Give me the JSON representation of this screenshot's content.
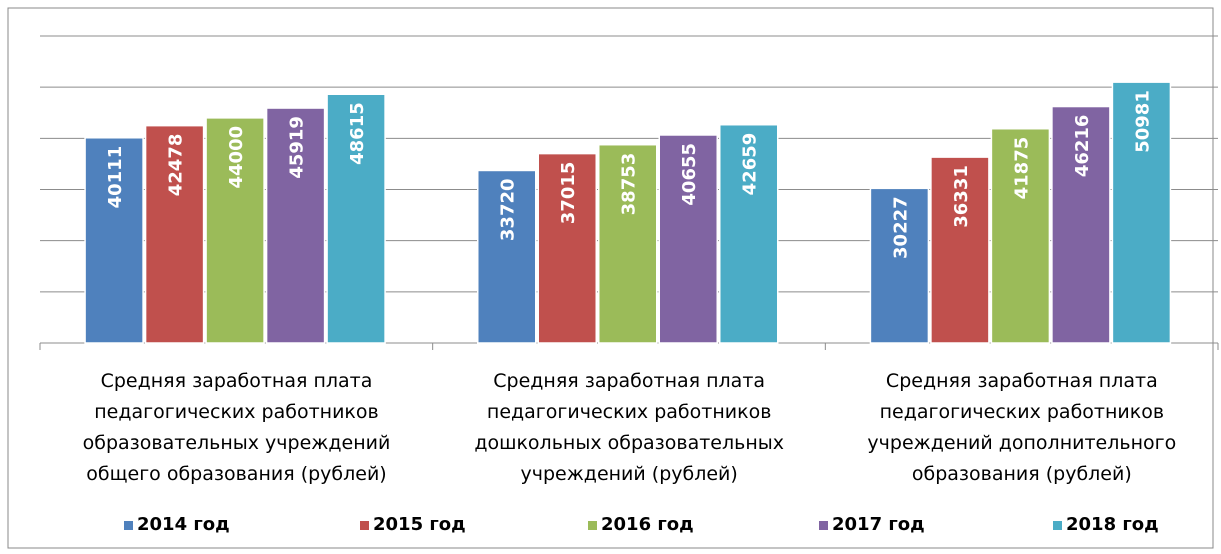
{
  "chart_data": {
    "type": "bar",
    "categories": [
      "Средняя заработная плата\nпедагогических работников\nобразовательных учреждений\nобщего образования  (рублей)",
      "Средняя заработная плата\nпедагогических работников\nдошкольных образовательных\nучреждений (рублей)",
      "Средняя заработная плата\nпедагогических работников\nучреждений дополнительного\nобразования  (рублей)"
    ],
    "series": [
      {
        "name": "2014 год",
        "color": "#4f81bd",
        "values": [
          40111,
          33720,
          30227
        ]
      },
      {
        "name": "2015 год",
        "color": "#c0504d",
        "values": [
          42478,
          37015,
          36331
        ]
      },
      {
        "name": "2016 год",
        "color": "#9bbb59",
        "values": [
          44000,
          38753,
          41875
        ]
      },
      {
        "name": "2017 год",
        "color": "#8064a2",
        "values": [
          45919,
          40655,
          46216
        ]
      },
      {
        "name": "2018 год",
        "color": "#4bacc6",
        "values": [
          48615,
          42659,
          50981
        ]
      }
    ],
    "ylim": [
      0,
      60000
    ],
    "yticks": [
      0,
      10000,
      20000,
      30000,
      40000,
      50000,
      60000
    ],
    "grid": true,
    "legend": "bottom"
  }
}
